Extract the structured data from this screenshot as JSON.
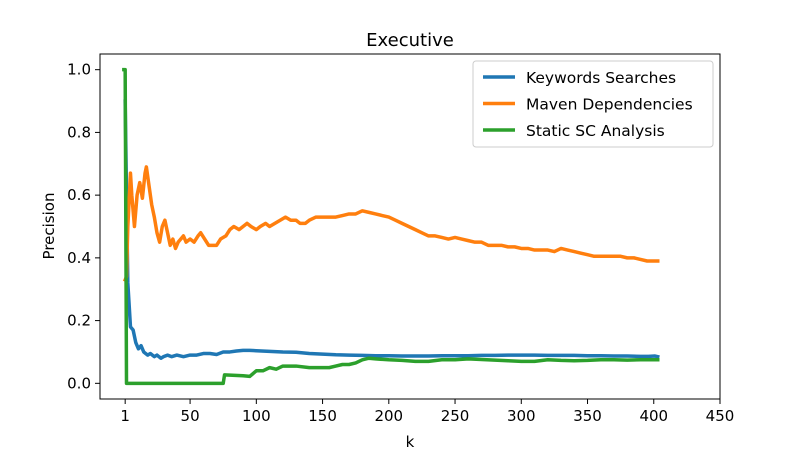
{
  "chart_data": {
    "type": "line",
    "title": "Executive",
    "xlabel": "k",
    "ylabel": "Precision",
    "xlim": [
      -18,
      450
    ],
    "ylim": [
      -0.05,
      1.05
    ],
    "xticks": [
      1,
      50,
      100,
      150,
      200,
      250,
      300,
      350,
      400,
      450
    ],
    "yticks": [
      0.0,
      0.2,
      0.4,
      0.6,
      0.8,
      1.0
    ],
    "xtick_labels": [
      "1",
      "50",
      "100",
      "150",
      "200",
      "250",
      "300",
      "350",
      "400",
      "450"
    ],
    "ytick_labels": [
      "0.0",
      "0.2",
      "0.4",
      "0.6",
      "0.8",
      "1.0"
    ],
    "grid": false,
    "legend": "top-right",
    "series": [
      {
        "name": "Keywords Searches",
        "color": "#1f77b4",
        "points": [
          [
            1,
            0.9
          ],
          [
            3,
            0.32
          ],
          [
            5,
            0.18
          ],
          [
            7,
            0.17
          ],
          [
            9,
            0.13
          ],
          [
            11,
            0.11
          ],
          [
            13,
            0.12
          ],
          [
            15,
            0.1
          ],
          [
            18,
            0.09
          ],
          [
            20,
            0.095
          ],
          [
            23,
            0.085
          ],
          [
            25,
            0.09
          ],
          [
            28,
            0.08
          ],
          [
            30,
            0.085
          ],
          [
            33,
            0.09
          ],
          [
            36,
            0.085
          ],
          [
            40,
            0.09
          ],
          [
            45,
            0.085
          ],
          [
            50,
            0.09
          ],
          [
            55,
            0.09
          ],
          [
            60,
            0.095
          ],
          [
            65,
            0.095
          ],
          [
            70,
            0.092
          ],
          [
            75,
            0.1
          ],
          [
            80,
            0.1
          ],
          [
            85,
            0.103
          ],
          [
            90,
            0.105
          ],
          [
            95,
            0.105
          ],
          [
            100,
            0.104
          ],
          [
            110,
            0.102
          ],
          [
            120,
            0.1
          ],
          [
            130,
            0.099
          ],
          [
            140,
            0.095
          ],
          [
            150,
            0.093
          ],
          [
            160,
            0.091
          ],
          [
            170,
            0.09
          ],
          [
            180,
            0.089
          ],
          [
            190,
            0.088
          ],
          [
            200,
            0.088
          ],
          [
            210,
            0.087
          ],
          [
            220,
            0.087
          ],
          [
            230,
            0.087
          ],
          [
            240,
            0.088
          ],
          [
            250,
            0.088
          ],
          [
            260,
            0.088
          ],
          [
            270,
            0.089
          ],
          [
            280,
            0.089
          ],
          [
            290,
            0.09
          ],
          [
            300,
            0.09
          ],
          [
            310,
            0.09
          ],
          [
            320,
            0.089
          ],
          [
            330,
            0.089
          ],
          [
            340,
            0.089
          ],
          [
            350,
            0.088
          ],
          [
            360,
            0.088
          ],
          [
            370,
            0.087
          ],
          [
            380,
            0.087
          ],
          [
            390,
            0.086
          ],
          [
            396,
            0.086
          ],
          [
            401,
            0.087
          ],
          [
            403,
            0.085
          ]
        ]
      },
      {
        "name": "Maven Dependencies",
        "color": "#ff7f0e",
        "points": [
          [
            1,
            0.33
          ],
          [
            2,
            0.34
          ],
          [
            3,
            0.5
          ],
          [
            5,
            0.67
          ],
          [
            6,
            0.6
          ],
          [
            8,
            0.5
          ],
          [
            10,
            0.6
          ],
          [
            12,
            0.64
          ],
          [
            14,
            0.59
          ],
          [
            16,
            0.67
          ],
          [
            17,
            0.69
          ],
          [
            19,
            0.63
          ],
          [
            21,
            0.57
          ],
          [
            23,
            0.53
          ],
          [
            25,
            0.48
          ],
          [
            27,
            0.45
          ],
          [
            29,
            0.5
          ],
          [
            31,
            0.52
          ],
          [
            33,
            0.48
          ],
          [
            35,
            0.44
          ],
          [
            37,
            0.46
          ],
          [
            39,
            0.43
          ],
          [
            41,
            0.45
          ],
          [
            43,
            0.46
          ],
          [
            45,
            0.47
          ],
          [
            47,
            0.45
          ],
          [
            50,
            0.46
          ],
          [
            53,
            0.45
          ],
          [
            56,
            0.47
          ],
          [
            58,
            0.48
          ],
          [
            61,
            0.46
          ],
          [
            64,
            0.44
          ],
          [
            67,
            0.44
          ],
          [
            70,
            0.44
          ],
          [
            73,
            0.46
          ],
          [
            77,
            0.47
          ],
          [
            80,
            0.49
          ],
          [
            83,
            0.5
          ],
          [
            87,
            0.49
          ],
          [
            90,
            0.5
          ],
          [
            93,
            0.51
          ],
          [
            96,
            0.5
          ],
          [
            100,
            0.49
          ],
          [
            103,
            0.5
          ],
          [
            107,
            0.51
          ],
          [
            110,
            0.5
          ],
          [
            114,
            0.51
          ],
          [
            118,
            0.52
          ],
          [
            122,
            0.53
          ],
          [
            126,
            0.52
          ],
          [
            130,
            0.52
          ],
          [
            133,
            0.51
          ],
          [
            137,
            0.51
          ],
          [
            140,
            0.52
          ],
          [
            145,
            0.53
          ],
          [
            150,
            0.53
          ],
          [
            155,
            0.53
          ],
          [
            160,
            0.53
          ],
          [
            165,
            0.535
          ],
          [
            170,
            0.54
          ],
          [
            175,
            0.54
          ],
          [
            180,
            0.55
          ],
          [
            185,
            0.545
          ],
          [
            190,
            0.54
          ],
          [
            195,
            0.535
          ],
          [
            200,
            0.53
          ],
          [
            205,
            0.52
          ],
          [
            210,
            0.51
          ],
          [
            215,
            0.5
          ],
          [
            220,
            0.49
          ],
          [
            225,
            0.48
          ],
          [
            230,
            0.47
          ],
          [
            235,
            0.47
          ],
          [
            240,
            0.465
          ],
          [
            245,
            0.46
          ],
          [
            250,
            0.465
          ],
          [
            255,
            0.46
          ],
          [
            260,
            0.455
          ],
          [
            265,
            0.45
          ],
          [
            270,
            0.45
          ],
          [
            275,
            0.44
          ],
          [
            280,
            0.44
          ],
          [
            285,
            0.44
          ],
          [
            290,
            0.435
          ],
          [
            295,
            0.435
          ],
          [
            300,
            0.43
          ],
          [
            305,
            0.43
          ],
          [
            310,
            0.425
          ],
          [
            315,
            0.425
          ],
          [
            320,
            0.425
          ],
          [
            325,
            0.42
          ],
          [
            330,
            0.43
          ],
          [
            335,
            0.425
          ],
          [
            340,
            0.42
          ],
          [
            345,
            0.415
          ],
          [
            350,
            0.41
          ],
          [
            355,
            0.405
          ],
          [
            360,
            0.405
          ],
          [
            365,
            0.405
          ],
          [
            370,
            0.405
          ],
          [
            375,
            0.405
          ],
          [
            380,
            0.4
          ],
          [
            385,
            0.4
          ],
          [
            390,
            0.395
          ],
          [
            395,
            0.39
          ],
          [
            400,
            0.39
          ],
          [
            403,
            0.39
          ]
        ]
      },
      {
        "name": "Static SC Analysis",
        "color": "#2ca02c",
        "points": [
          [
            0,
            1.0
          ],
          [
            1,
            1.0
          ],
          [
            2,
            0.0
          ],
          [
            75,
            0.0
          ],
          [
            76,
            0.027
          ],
          [
            90,
            0.024
          ],
          [
            95,
            0.022
          ],
          [
            100,
            0.04
          ],
          [
            105,
            0.04
          ],
          [
            110,
            0.05
          ],
          [
            115,
            0.045
          ],
          [
            120,
            0.055
          ],
          [
            130,
            0.055
          ],
          [
            140,
            0.05
          ],
          [
            150,
            0.05
          ],
          [
            155,
            0.05
          ],
          [
            160,
            0.055
          ],
          [
            165,
            0.06
          ],
          [
            170,
            0.06
          ],
          [
            175,
            0.065
          ],
          [
            180,
            0.075
          ],
          [
            185,
            0.08
          ],
          [
            190,
            0.078
          ],
          [
            200,
            0.075
          ],
          [
            210,
            0.073
          ],
          [
            220,
            0.07
          ],
          [
            230,
            0.07
          ],
          [
            240,
            0.075
          ],
          [
            250,
            0.075
          ],
          [
            260,
            0.078
          ],
          [
            270,
            0.076
          ],
          [
            280,
            0.074
          ],
          [
            290,
            0.072
          ],
          [
            300,
            0.07
          ],
          [
            310,
            0.07
          ],
          [
            320,
            0.075
          ],
          [
            330,
            0.073
          ],
          [
            340,
            0.072
          ],
          [
            350,
            0.073
          ],
          [
            360,
            0.075
          ],
          [
            370,
            0.075
          ],
          [
            380,
            0.074
          ],
          [
            390,
            0.075
          ],
          [
            400,
            0.075
          ],
          [
            403,
            0.075
          ]
        ]
      }
    ]
  }
}
